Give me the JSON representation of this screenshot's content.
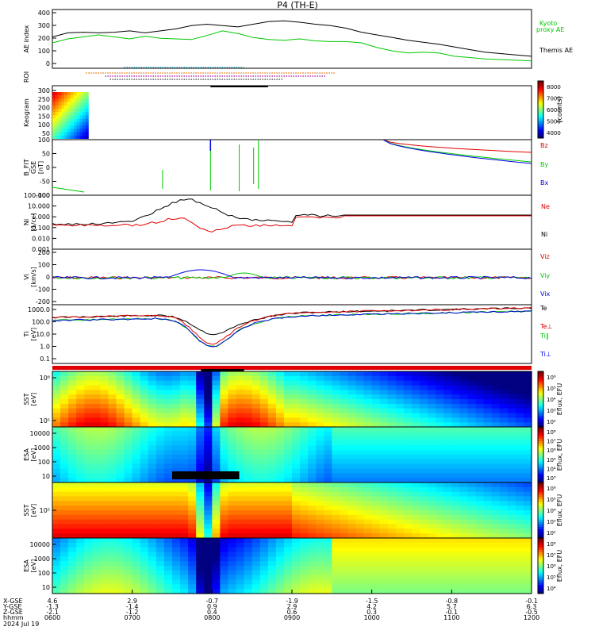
{
  "title": "P4 (TH-E)",
  "colors": {
    "red": "#e00000",
    "green": "#00c800",
    "blue": "#0000e0",
    "black": "#000000"
  },
  "chart_data": [
    {
      "type": "line",
      "panel": "ae",
      "ylabel": "AE index",
      "ylim": [
        -20,
        420
      ],
      "ticks": [
        "0",
        "100",
        "200",
        "300",
        "400"
      ],
      "series": [
        {
          "name": "Kyoto proxy AE",
          "color": "#00c800",
          "values": [
            170,
            200,
            215,
            230,
            215,
            200,
            220,
            205,
            200,
            195,
            225,
            260,
            240,
            210,
            195,
            190,
            200,
            185,
            180,
            180,
            170,
            135,
            110,
            95,
            100,
            95,
            70,
            60,
            50,
            45,
            40,
            35
          ]
        },
        {
          "name": "Themis AE",
          "color": "#000000",
          "values": [
            215,
            245,
            250,
            245,
            250,
            260,
            245,
            260,
            275,
            300,
            310,
            300,
            290,
            310,
            330,
            335,
            325,
            310,
            300,
            280,
            250,
            230,
            210,
            190,
            175,
            160,
            140,
            120,
            100,
            90,
            80,
            70
          ]
        }
      ],
      "right_labels": [
        "Kyoto",
        "proxy AE",
        "Themis AE"
      ]
    },
    {
      "type": "scatter",
      "panel": "roi",
      "ylabel": "ROI"
    },
    {
      "type": "heatmap",
      "panel": "keogram",
      "ylabel": "Keogram",
      "ticks": [
        "50",
        "100",
        "150",
        "200",
        "250",
        "300"
      ],
      "colorbar": {
        "label": "[counts]",
        "ticks": [
          "4000",
          "5000",
          "6000",
          "7000",
          "8000"
        ]
      }
    },
    {
      "type": "line",
      "panel": "b",
      "ylabel": "B_FIT",
      "ylabel2": "GSE",
      "ylabel3": "[nT]",
      "ticks": [
        "-100",
        "-50",
        "0",
        "50",
        "100"
      ],
      "series": [
        {
          "name": "Bz",
          "color": "#e00000"
        },
        {
          "name": "By",
          "color": "#00c800"
        },
        {
          "name": "Bx",
          "color": "#0000e0"
        }
      ]
    },
    {
      "type": "line",
      "panel": "density",
      "ylabel": "Ni",
      "ylabel2": "[1/cc]",
      "ylog": true,
      "ticks": [
        "0.001",
        "0.010",
        "0.100",
        "1.000",
        "10.000",
        "100.000"
      ],
      "series": [
        {
          "name": "Ne",
          "color": "#e00000"
        },
        {
          "name": "Ni",
          "color": "#000000"
        }
      ]
    },
    {
      "type": "line",
      "panel": "velocity",
      "ylabel": "Vi",
      "ylabel2": "[km/s]",
      "ticks": [
        "-200",
        "-100",
        "0",
        "100",
        "200"
      ],
      "series": [
        {
          "name": "Viz",
          "color": "#e00000"
        },
        {
          "name": "Viy",
          "color": "#00c800"
        },
        {
          "name": "Vix",
          "color": "#0000e0"
        }
      ]
    },
    {
      "type": "line",
      "panel": "temperature",
      "ylabel": "Ti",
      "ylabel2": "[eV]",
      "ylog": true,
      "ticks": [
        "0.1",
        "1.0",
        "10.0",
        "100.0",
        "1000.0"
      ],
      "series": [
        {
          "name": "Te",
          "color": "#000000"
        },
        {
          "name": "Te⊥",
          "color": "#e00000"
        },
        {
          "name": "Ti∥",
          "color": "#00c800"
        },
        {
          "name": "Ti⊥",
          "color": "#0000e0"
        }
      ]
    },
    {
      "type": "heatmap",
      "panel": "sst_e",
      "ylabel": "SST",
      "ylabel2": "[eV]",
      "ticks": [
        "10⁵",
        "10⁶"
      ],
      "colorbar": {
        "label": "Eflux, EFU",
        "ticks": [
          "10²",
          "10³",
          "10⁴",
          "10⁵",
          "10⁶"
        ]
      }
    },
    {
      "type": "heatmap",
      "panel": "esa_e",
      "ylabel": "ESA",
      "ylabel2": "[eV]",
      "ticks": [
        "10",
        "100",
        "1000",
        "10000"
      ],
      "colorbar": {
        "label": "Eflux, EFU",
        "ticks": [
          "10³",
          "10⁴",
          "10⁵",
          "10⁶",
          "10⁷",
          "10⁸"
        ]
      }
    },
    {
      "type": "heatmap",
      "panel": "sst_i",
      "ylabel": "SST",
      "ylabel2": "[eV]",
      "ticks": [
        "10⁵"
      ],
      "colorbar": {
        "label": "Eflux, EFU",
        "ticks": [
          "10²",
          "10³",
          "10⁴",
          "10⁵",
          "10⁶"
        ]
      }
    },
    {
      "type": "heatmap",
      "panel": "esa_i",
      "ylabel": "ESA",
      "ylabel2": "[eV]",
      "ticks": [
        "10",
        "100",
        "1000",
        "10000"
      ],
      "colorbar": {
        "label": "Eflux, EFU",
        "ticks": [
          "10⁴",
          "10⁵",
          "10⁶",
          "10⁷",
          "10⁸"
        ]
      }
    }
  ],
  "x_axis": {
    "row_labels": [
      "X-GSE",
      "Y-GSE",
      "Z-GSE",
      "hhmm",
      "2024 Jul 19"
    ],
    "columns": [
      [
        "4.6",
        "-1.3",
        "-2.1",
        "0600"
      ],
      [
        "2.9",
        "-1.4",
        "-1.2",
        "0700"
      ],
      [
        "-0.7",
        "0.9",
        "0.4",
        "0800"
      ],
      [
        "-1.9",
        "2.9",
        "0.6",
        "0900"
      ],
      [
        "-1.5",
        "4.2",
        "0.3",
        "1000"
      ],
      [
        "-0.8",
        "5.7",
        "-0.1",
        "1100"
      ],
      [
        "-0.1",
        "6.3",
        "-0.5",
        "1200"
      ]
    ]
  }
}
